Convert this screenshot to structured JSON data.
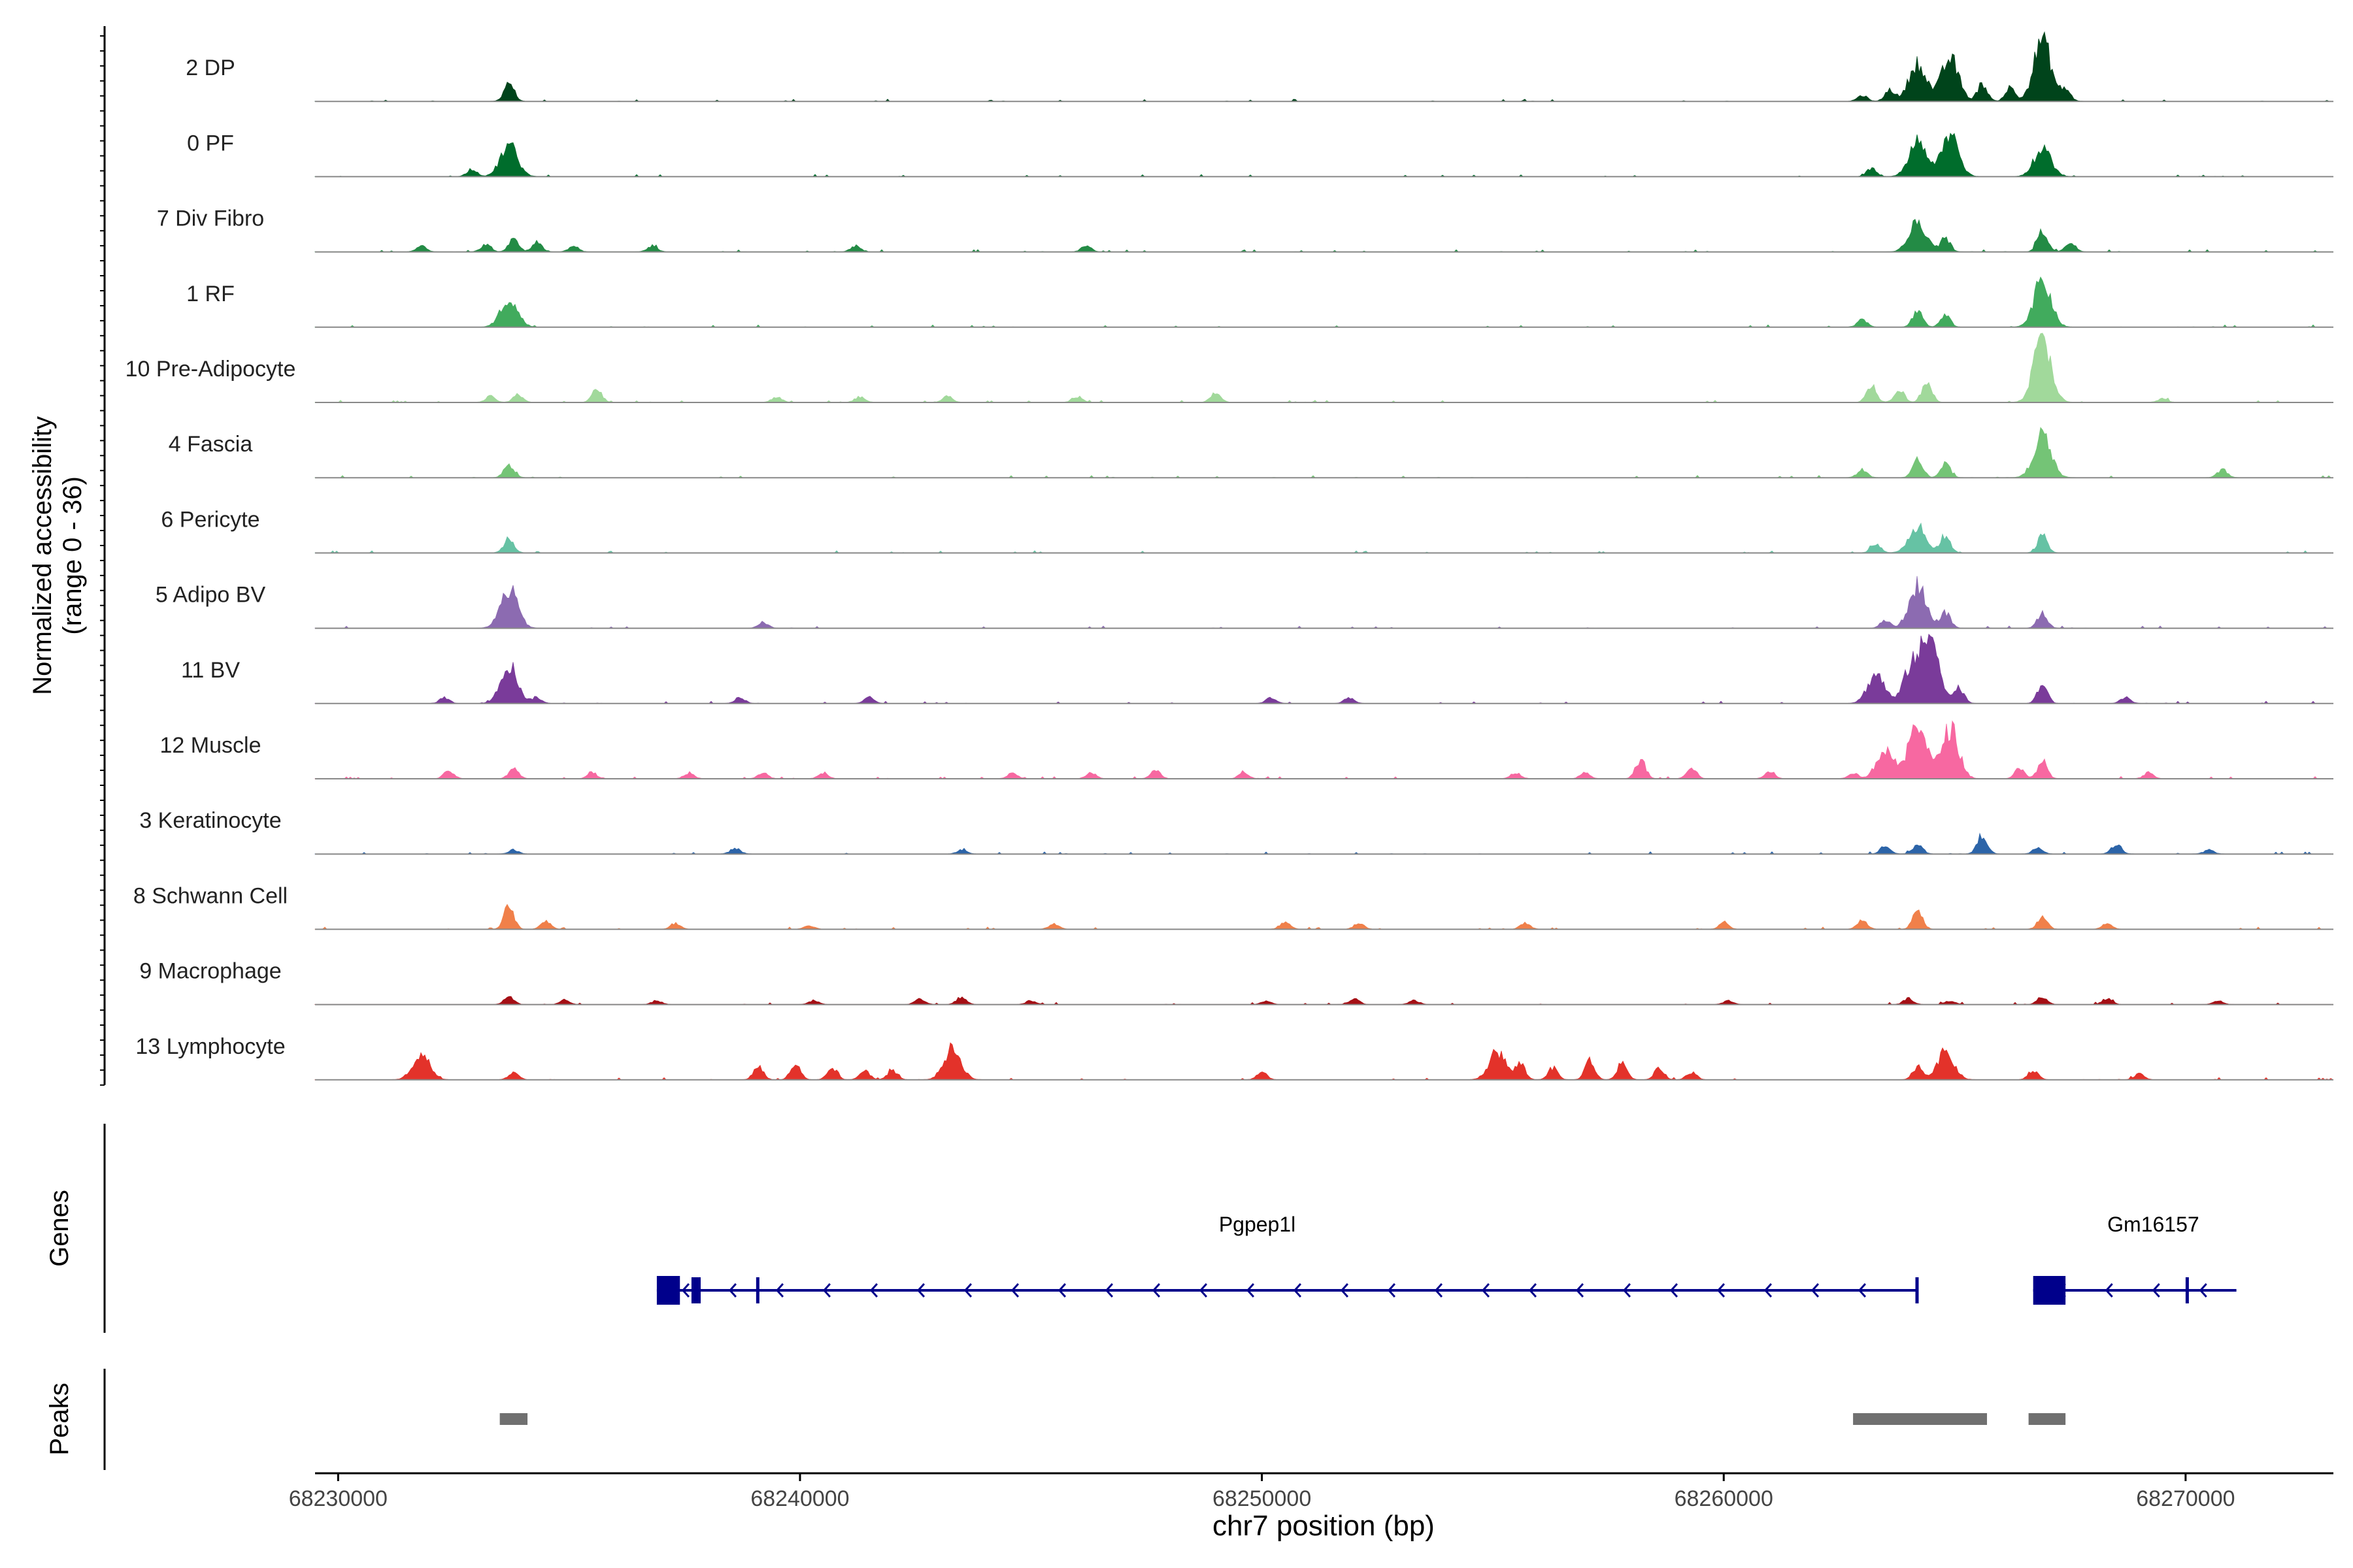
{
  "chart_data": {
    "type": "area",
    "title": "",
    "ylabel_line1": "Normalized accessibility",
    "ylabel_line2": "(range 0 - 36)",
    "xlabel": "chr7 position (bp)",
    "ylim": [
      0,
      36
    ],
    "xlim": [
      68229500,
      68273200
    ],
    "x_ticks": [
      68230000,
      68240000,
      68250000,
      68260000,
      68270000
    ],
    "x_tick_labels": [
      "68230000",
      "68240000",
      "68250000",
      "68260000",
      "68270000"
    ],
    "series": [
      {
        "name": "2 DP",
        "color": "#00441b",
        "peaks": [
          [
            68233700,
            10
          ],
          [
            68263000,
            3
          ],
          [
            68263600,
            6
          ],
          [
            68264200,
            20
          ],
          [
            68264900,
            22
          ],
          [
            68265600,
            9
          ],
          [
            68266200,
            7
          ],
          [
            68266900,
            32
          ],
          [
            68267400,
            6
          ]
        ]
      },
      {
        "name": "0 PF",
        "color": "#006d2c",
        "peaks": [
          [
            68232900,
            4
          ],
          [
            68233700,
            16
          ],
          [
            68263200,
            4
          ],
          [
            68264200,
            18
          ],
          [
            68264900,
            22
          ],
          [
            68266900,
            14
          ]
        ]
      },
      {
        "name": "7 Div Fibro",
        "color": "#238b45",
        "peaks": [
          [
            68231800,
            3
          ],
          [
            68233200,
            4
          ],
          [
            68233800,
            7
          ],
          [
            68234300,
            5
          ],
          [
            68235100,
            3
          ],
          [
            68236800,
            3
          ],
          [
            68241200,
            3
          ],
          [
            68246200,
            3
          ],
          [
            68264200,
            15
          ],
          [
            68264800,
            7
          ],
          [
            68266900,
            12
          ],
          [
            68267500,
            5
          ]
        ]
      },
      {
        "name": "1 RF",
        "color": "#41ab5d",
        "peaks": [
          [
            68233700,
            14
          ],
          [
            68263000,
            4
          ],
          [
            68264200,
            9
          ],
          [
            68264800,
            6
          ],
          [
            68266900,
            24
          ]
        ]
      },
      {
        "name": "10 Pre-Adipocyte",
        "color": "#a1d99b",
        "peaks": [
          [
            68233300,
            3
          ],
          [
            68233900,
            4
          ],
          [
            68235600,
            7
          ],
          [
            68239500,
            3
          ],
          [
            68241300,
            3
          ],
          [
            68243200,
            3
          ],
          [
            68246000,
            3
          ],
          [
            68249000,
            5
          ],
          [
            68263200,
            9
          ],
          [
            68263800,
            7
          ],
          [
            68264400,
            11
          ],
          [
            68266900,
            34
          ],
          [
            68269500,
            2
          ]
        ]
      },
      {
        "name": "4 Fascia",
        "color": "#74c476",
        "peaks": [
          [
            68233700,
            7
          ],
          [
            68263000,
            4
          ],
          [
            68264200,
            10
          ],
          [
            68264800,
            7
          ],
          [
            68266900,
            22
          ],
          [
            68270800,
            4
          ]
        ]
      },
      {
        "name": "6 Pericyte",
        "color": "#66c2a4",
        "peaks": [
          [
            68233700,
            8
          ],
          [
            68263300,
            5
          ],
          [
            68264200,
            14
          ],
          [
            68264800,
            9
          ],
          [
            68266900,
            9
          ]
        ]
      },
      {
        "name": "5 Adipo BV",
        "color": "#8c6bb1",
        "peaks": [
          [
            68233700,
            20
          ],
          [
            68239200,
            3
          ],
          [
            68263500,
            4
          ],
          [
            68264200,
            22
          ],
          [
            68264800,
            8
          ],
          [
            68266900,
            8
          ]
        ]
      },
      {
        "name": "11 BV",
        "color": "#7a3b9a",
        "peaks": [
          [
            68232300,
            3
          ],
          [
            68233700,
            20
          ],
          [
            68234300,
            3
          ],
          [
            68238700,
            3
          ],
          [
            68241500,
            3
          ],
          [
            68250200,
            3
          ],
          [
            68251900,
            3
          ],
          [
            68263300,
            15
          ],
          [
            68264100,
            21
          ],
          [
            68264500,
            32
          ],
          [
            68265100,
            8
          ],
          [
            68266900,
            10
          ],
          [
            68268700,
            3
          ]
        ]
      },
      {
        "name": "12 Muscle",
        "color": "#f768a1",
        "peaks": [
          [
            68232400,
            4
          ],
          [
            68233800,
            5
          ],
          [
            68235500,
            3
          ],
          [
            68237600,
            3
          ],
          [
            68239200,
            3
          ],
          [
            68240500,
            3
          ],
          [
            68244600,
            3
          ],
          [
            68246300,
            3
          ],
          [
            68247700,
            4
          ],
          [
            68249600,
            3
          ],
          [
            68255500,
            3
          ],
          [
            68257000,
            3
          ],
          [
            68258200,
            10
          ],
          [
            68259300,
            6
          ],
          [
            68261000,
            4
          ],
          [
            68262800,
            3
          ],
          [
            68263500,
            15
          ],
          [
            68264200,
            30
          ],
          [
            68264900,
            26
          ],
          [
            68266400,
            5
          ],
          [
            68266900,
            9
          ],
          [
            68269200,
            3
          ]
        ]
      },
      {
        "name": "3 Keratinocyte",
        "color": "#2c64a8",
        "peaks": [
          [
            68233800,
            2
          ],
          [
            68238600,
            3
          ],
          [
            68243500,
            2
          ],
          [
            68263500,
            4
          ],
          [
            68264200,
            5
          ],
          [
            68265600,
            10
          ],
          [
            68266800,
            3
          ],
          [
            68268500,
            5
          ],
          [
            68270500,
            2
          ]
        ]
      },
      {
        "name": "8 Schwann Cell",
        "color": "#f0804a",
        "peaks": [
          [
            68233700,
            12
          ],
          [
            68234500,
            4
          ],
          [
            68237300,
            3
          ],
          [
            68240200,
            2
          ],
          [
            68245500,
            3
          ],
          [
            68250500,
            4
          ],
          [
            68252100,
            3
          ],
          [
            68255700,
            3
          ],
          [
            68260000,
            3
          ],
          [
            68263000,
            5
          ],
          [
            68264200,
            10
          ],
          [
            68266900,
            6
          ],
          [
            68268300,
            3
          ]
        ]
      },
      {
        "name": "9 Macrophage",
        "color": "#a50f15",
        "peaks": [
          [
            68233700,
            4
          ],
          [
            68234900,
            2
          ],
          [
            68236900,
            2
          ],
          [
            68240300,
            2
          ],
          [
            68242600,
            3
          ],
          [
            68243500,
            4
          ],
          [
            68245000,
            2
          ],
          [
            68250100,
            2
          ],
          [
            68252000,
            3
          ],
          [
            68253300,
            2
          ],
          [
            68260100,
            2
          ],
          [
            68264000,
            3
          ],
          [
            68264900,
            2
          ],
          [
            68266900,
            4
          ],
          [
            68268300,
            3
          ],
          [
            68270700,
            2
          ]
        ]
      },
      {
        "name": "13 Lymphocyte",
        "color": "#e3322a",
        "peaks": [
          [
            68231800,
            13
          ],
          [
            68233800,
            4
          ],
          [
            68239100,
            7
          ],
          [
            68239900,
            8
          ],
          [
            68240700,
            6
          ],
          [
            68241400,
            5
          ],
          [
            68242000,
            5
          ],
          [
            68243300,
            16
          ],
          [
            68250000,
            4
          ],
          [
            68255100,
            14
          ],
          [
            68255600,
            8
          ],
          [
            68256300,
            6
          ],
          [
            68257100,
            10
          ],
          [
            68257800,
            9
          ],
          [
            68258600,
            6
          ],
          [
            68259300,
            4
          ],
          [
            68264200,
            7
          ],
          [
            68264800,
            14
          ],
          [
            68266700,
            5
          ],
          [
            68269000,
            3
          ]
        ]
      }
    ],
    "genes": [
      {
        "name": "Pgpep1l",
        "start": 68236900,
        "end": 68264200,
        "strand": "-",
        "exons": [
          [
            68236900,
            68237400
          ],
          [
            68237650,
            68237850
          ],
          [
            68239050,
            68239100
          ],
          [
            68264150,
            68264200
          ]
        ],
        "label_x": 68249900
      },
      {
        "name": "Gm16157",
        "start": 68266700,
        "end": 68271100,
        "strand": "-",
        "exons": [
          [
            68266700,
            68267400
          ],
          [
            68270000,
            68270060
          ]
        ],
        "label_x": 68269300
      }
    ],
    "peaks_track": [
      [
        68233500,
        68234100
      ],
      [
        68262800,
        68265700
      ],
      [
        68266600,
        68267400
      ]
    ],
    "panel_labels": {
      "genes": "Genes",
      "peaks": "Peaks"
    }
  }
}
